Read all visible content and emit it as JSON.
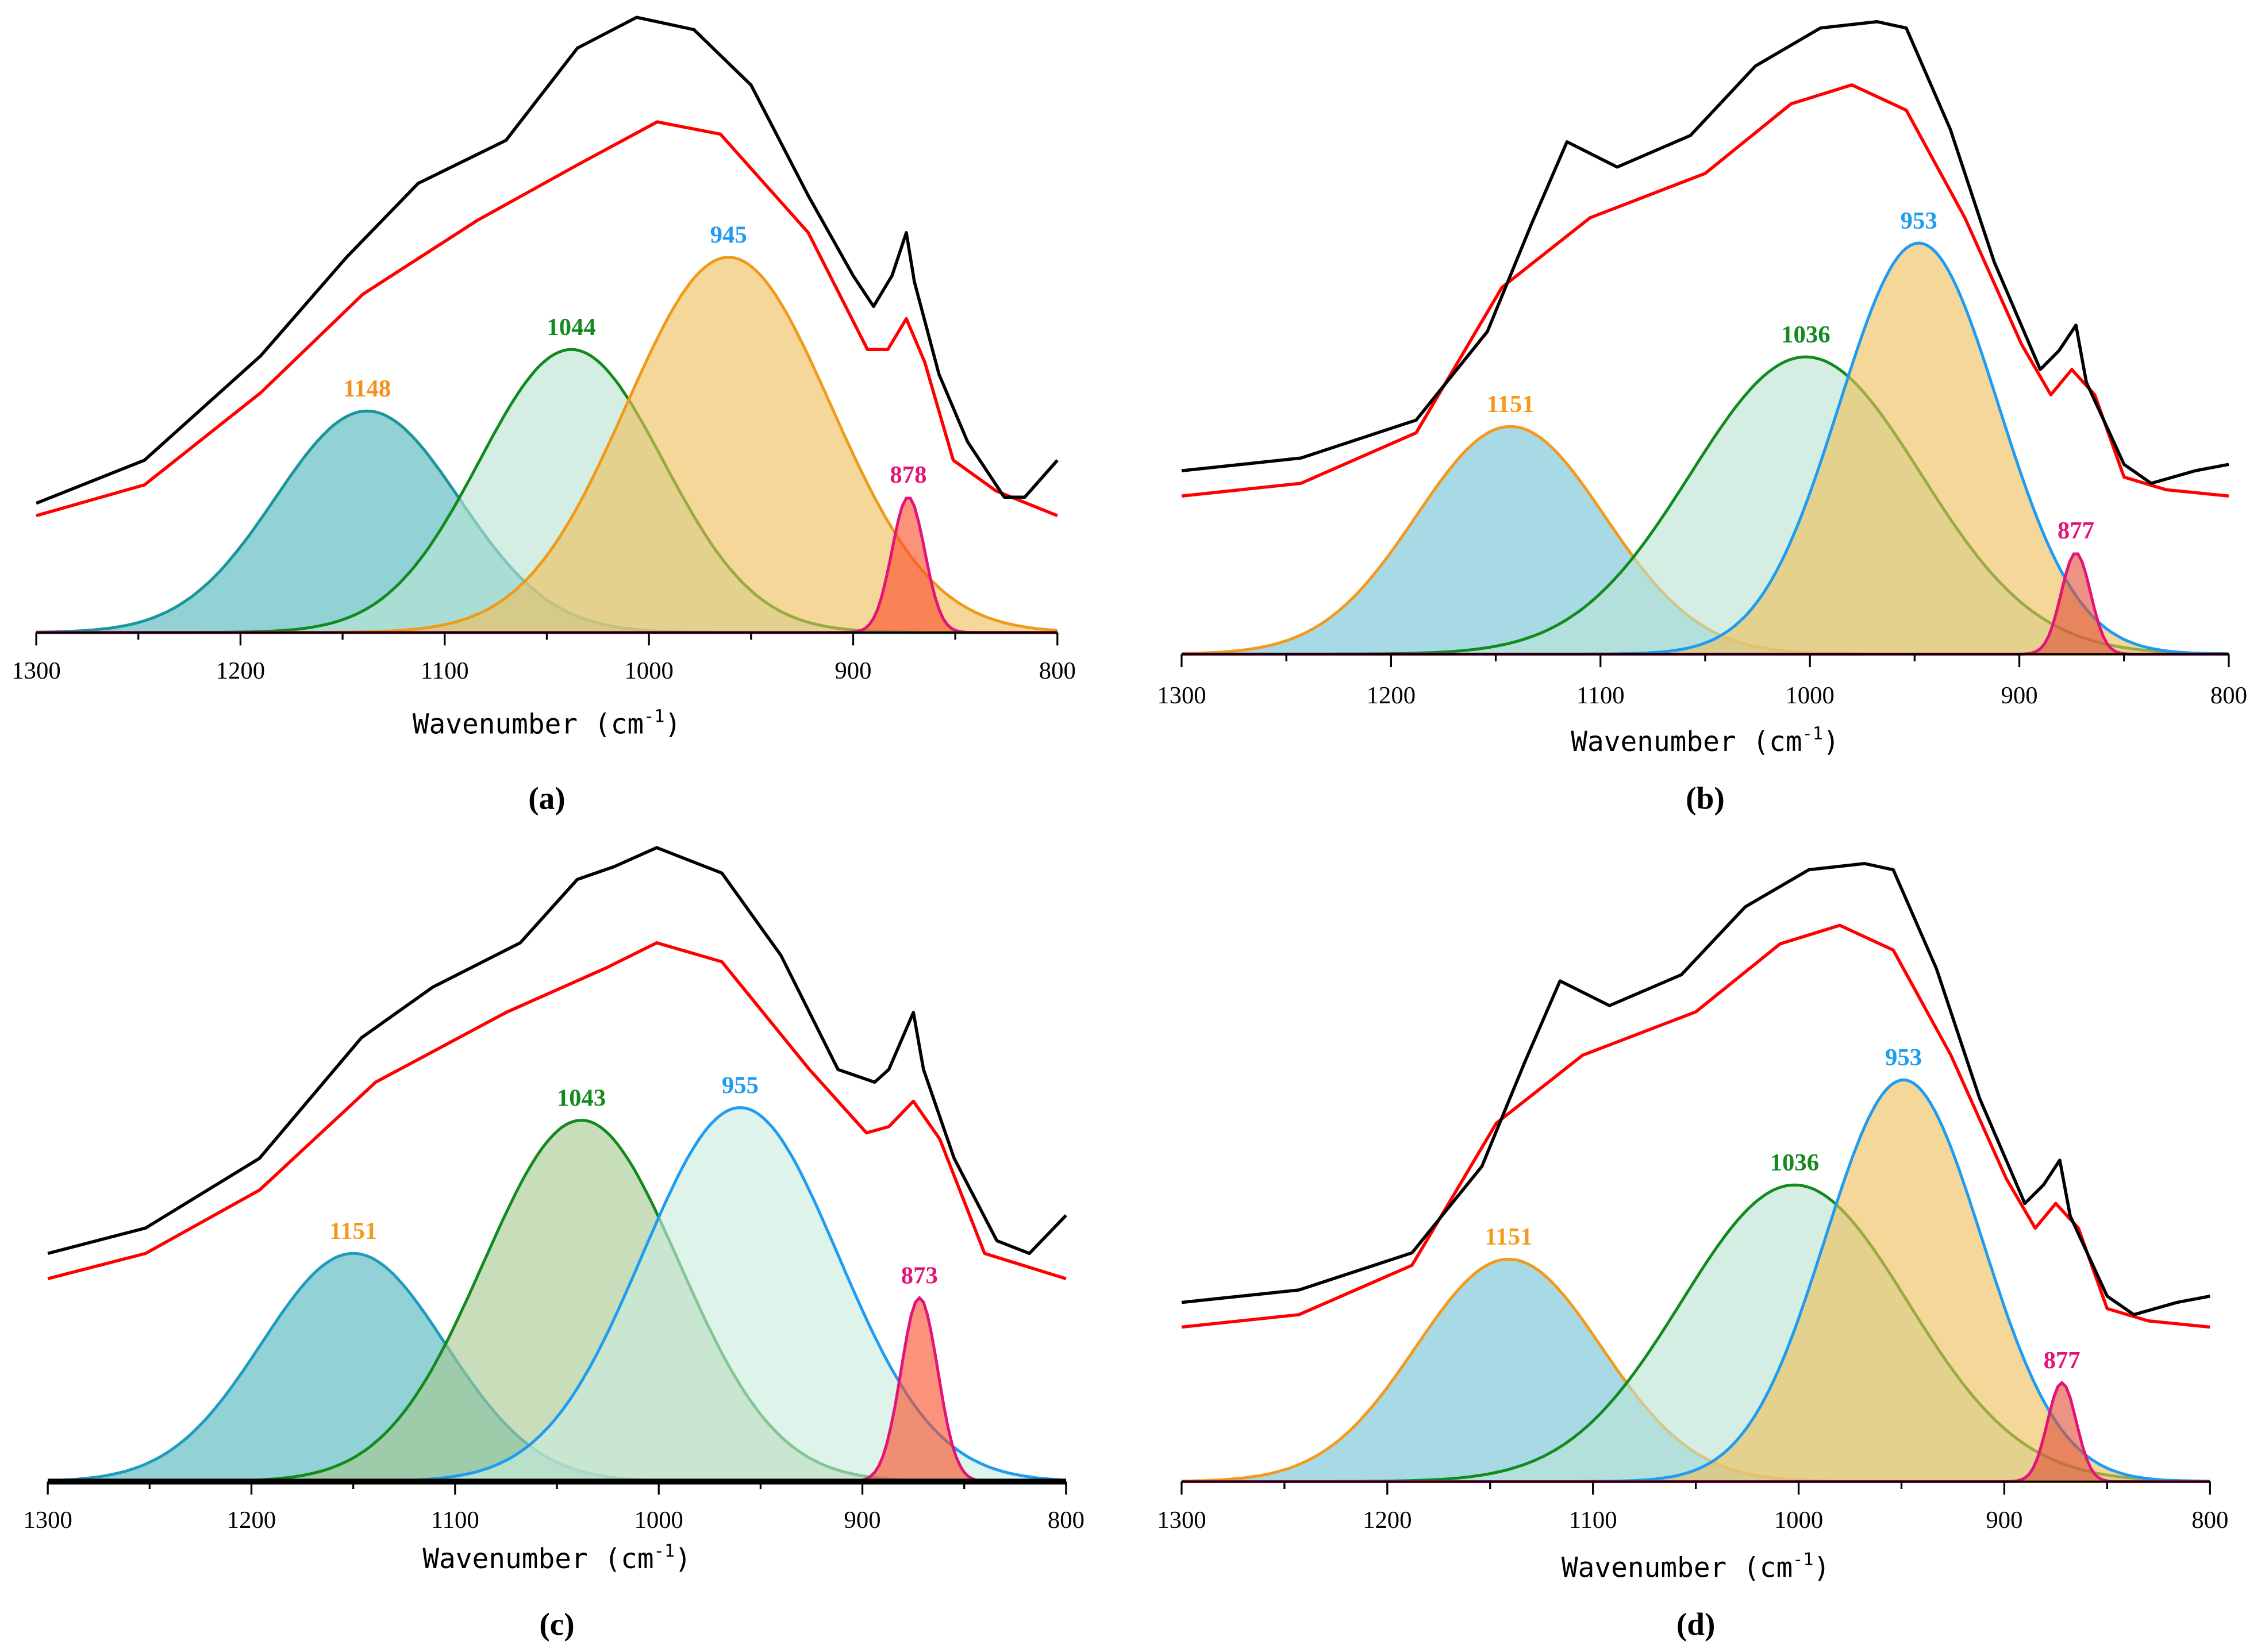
{
  "chart_data": [
    {
      "type": "area",
      "panel": "a",
      "caption": "(a)",
      "xlabel": "Wavenumber (cm",
      "xlabel_sup": "-1",
      "xlabel_end": ")",
      "xlim": [
        1300,
        800
      ],
      "xticks": [
        "1300",
        "1200",
        "1100",
        "1000",
        "900",
        "800"
      ],
      "ylabel": "",
      "thick_axis": false,
      "peaks": [
        {
          "label": "1148",
          "center": 1138,
          "height": 0.36,
          "sigma": 45,
          "stroke": "#1a959c",
          "fill": "#4fb5bd",
          "label_color": "#f5901e"
        },
        {
          "label": "1044",
          "center": 1038,
          "height": 0.46,
          "sigma": 45,
          "stroke": "#128a1e",
          "fill": "#b9e3d2",
          "label_color": "#128a1e"
        },
        {
          "label": "945",
          "center": 961,
          "height": 0.61,
          "sigma": 50,
          "stroke": "#f09a1a",
          "fill": "#efbf5a",
          "label_color": "#1f9af0"
        },
        {
          "label": "878",
          "center": 873,
          "height": 0.22,
          "sigma": 8,
          "stroke": "#e3137a",
          "fill": "#fb4f2c",
          "label_color": "#e3137a"
        }
      ],
      "measured": {
        "color": "#000000",
        "x": [
          1300,
          1247,
          1190,
          1148,
          1113,
          1070,
          1035,
          1006,
          978,
          950,
          922,
          900,
          890,
          881,
          874,
          870,
          858,
          844,
          826,
          816,
          800
        ],
        "y": [
          0.21,
          0.28,
          0.45,
          0.61,
          0.73,
          0.8,
          0.95,
          1.0,
          0.98,
          0.89,
          0.71,
          0.58,
          0.53,
          0.58,
          0.65,
          0.57,
          0.42,
          0.31,
          0.22,
          0.22,
          0.28
        ]
      },
      "fitted": {
        "color": "#ff0000",
        "x": [
          1300,
          1247,
          1190,
          1140,
          1084,
          1035,
          996,
          965,
          922,
          893,
          883,
          874,
          865,
          851,
          830,
          800
        ],
        "y": [
          0.19,
          0.24,
          0.39,
          0.55,
          0.67,
          0.76,
          0.83,
          0.81,
          0.65,
          0.46,
          0.46,
          0.51,
          0.44,
          0.28,
          0.23,
          0.19
        ]
      }
    },
    {
      "type": "area",
      "panel": "b",
      "caption": "(b)",
      "xlabel": "Wavenumber (cm",
      "xlabel_sup": "-1",
      "xlabel_end": ")",
      "xlim": [
        1300,
        800
      ],
      "xticks": [
        "1300",
        "1200",
        "1100",
        "1000",
        "900",
        "800"
      ],
      "ylabel": "",
      "thick_axis": false,
      "peaks": [
        {
          "label": "1151",
          "center": 1143,
          "height": 0.36,
          "sigma": 45,
          "stroke": "#f39a1c",
          "fill": "#72c3d6",
          "label_color": "#f39a1c"
        },
        {
          "label": "1036",
          "center": 1002,
          "height": 0.47,
          "sigma": 55,
          "stroke": "#128a1e",
          "fill": "#b9e3d2",
          "label_color": "#128a1e"
        },
        {
          "label": "953",
          "center": 948,
          "height": 0.65,
          "sigma": 38,
          "stroke": "#1e9cf2",
          "fill": "#efbf5a",
          "label_color": "#1e9cf2"
        },
        {
          "label": "877",
          "center": 873,
          "height": 0.16,
          "sigma": 7,
          "stroke": "#e3137a",
          "fill": "#e0503a",
          "label_color": "#e3137a"
        }
      ],
      "measured": {
        "color": "#000000",
        "x": [
          1300,
          1243,
          1188,
          1154,
          1133,
          1116,
          1092,
          1057,
          1026,
          995,
          968,
          954,
          933,
          912,
          890,
          881,
          873,
          868,
          850,
          837,
          816,
          800
        ],
        "y": [
          0.29,
          0.31,
          0.37,
          0.51,
          0.68,
          0.81,
          0.77,
          0.82,
          0.93,
          0.99,
          1.0,
          0.99,
          0.83,
          0.62,
          0.45,
          0.48,
          0.52,
          0.43,
          0.3,
          0.27,
          0.29,
          0.3
        ]
      },
      "fitted": {
        "color": "#ff0000",
        "x": [
          1300,
          1243,
          1188,
          1147,
          1105,
          1050,
          1009,
          980,
          954,
          926,
          899,
          885,
          875,
          864,
          850,
          830,
          800
        ],
        "y": [
          0.25,
          0.27,
          0.35,
          0.58,
          0.69,
          0.76,
          0.87,
          0.9,
          0.86,
          0.69,
          0.49,
          0.41,
          0.45,
          0.41,
          0.28,
          0.26,
          0.25
        ]
      }
    },
    {
      "type": "area",
      "panel": "c",
      "caption": "(c)",
      "xlabel": "Wavenumber (cm",
      "xlabel_sup": "-1",
      "xlabel_end": ")",
      "xlim": [
        1300,
        800
      ],
      "xticks": [
        "1300",
        "1200",
        "1100",
        "1000",
        "900",
        "800"
      ],
      "ylabel": "",
      "thick_axis": true,
      "peaks": [
        {
          "label": "1151",
          "center": 1150,
          "height": 0.36,
          "sigma": 45,
          "stroke": "#1f9bc0",
          "fill": "#4fb5bd",
          "label_color": "#f39a1c"
        },
        {
          "label": "1043",
          "center": 1038,
          "height": 0.57,
          "sigma": 48,
          "stroke": "#128a1e",
          "fill": "#a6c88f",
          "label_color": "#128a1e"
        },
        {
          "label": "955",
          "center": 960,
          "height": 0.59,
          "sigma": 48,
          "stroke": "#1e9cf2",
          "fill": "#c9ebdd",
          "label_color": "#1e9cf2"
        },
        {
          "label": "873",
          "center": 872,
          "height": 0.29,
          "sigma": 9,
          "stroke": "#e3137a",
          "fill": "#fb4f2c",
          "label_color": "#e3137a"
        }
      ],
      "measured": {
        "color": "#000000",
        "x": [
          1300,
          1252,
          1196,
          1146,
          1111,
          1068,
          1040,
          1022,
          1001,
          969,
          940,
          912,
          894,
          887,
          875,
          870,
          855,
          834,
          818,
          800
        ],
        "y": [
          0.36,
          0.4,
          0.51,
          0.7,
          0.78,
          0.85,
          0.95,
          0.97,
          1.0,
          0.96,
          0.83,
          0.65,
          0.63,
          0.65,
          0.74,
          0.65,
          0.51,
          0.38,
          0.36,
          0.42
        ]
      },
      "fitted": {
        "color": "#ff0000",
        "x": [
          1300,
          1252,
          1196,
          1139,
          1075,
          1026,
          1001,
          969,
          926,
          898,
          887,
          875,
          862,
          840,
          800
        ],
        "y": [
          0.32,
          0.36,
          0.46,
          0.63,
          0.74,
          0.81,
          0.85,
          0.82,
          0.65,
          0.55,
          0.56,
          0.6,
          0.54,
          0.36,
          0.32
        ]
      }
    },
    {
      "type": "area",
      "panel": "d",
      "caption": "(d)",
      "xlabel": "Wavenumber (cm",
      "xlabel_sup": "-1",
      "xlabel_end": ")",
      "xlim": [
        1300,
        800
      ],
      "xticks": [
        "1300",
        "1200",
        "1100",
        "1000",
        "900",
        "800"
      ],
      "ylabel": "",
      "thick_axis": false,
      "peaks": [
        {
          "label": "1151",
          "center": 1141,
          "height": 0.36,
          "sigma": 45,
          "stroke": "#f39a1c",
          "fill": "#72c3d6",
          "label_color": "#f39a1c"
        },
        {
          "label": "1036",
          "center": 1002,
          "height": 0.48,
          "sigma": 55,
          "stroke": "#128a1e",
          "fill": "#b9e3d2",
          "label_color": "#128a1e"
        },
        {
          "label": "953",
          "center": 949,
          "height": 0.65,
          "sigma": 38,
          "stroke": "#1e9cf2",
          "fill": "#efbf5a",
          "label_color": "#1e9cf2"
        },
        {
          "label": "877",
          "center": 872,
          "height": 0.16,
          "sigma": 7,
          "stroke": "#e3137a",
          "fill": "#e0503a",
          "label_color": "#e3137a"
        }
      ],
      "measured": {
        "color": "#000000",
        "x": [
          1300,
          1243,
          1188,
          1154,
          1133,
          1116,
          1092,
          1057,
          1026,
          995,
          968,
          954,
          933,
          912,
          890,
          881,
          873,
          868,
          850,
          837,
          816,
          800
        ],
        "y": [
          0.29,
          0.31,
          0.37,
          0.51,
          0.68,
          0.81,
          0.77,
          0.82,
          0.93,
          0.99,
          1.0,
          0.99,
          0.83,
          0.62,
          0.45,
          0.48,
          0.52,
          0.43,
          0.3,
          0.27,
          0.29,
          0.3
        ]
      },
      "fitted": {
        "color": "#ff0000",
        "x": [
          1300,
          1243,
          1188,
          1147,
          1105,
          1050,
          1009,
          980,
          954,
          926,
          899,
          885,
          875,
          864,
          850,
          830,
          800
        ],
        "y": [
          0.25,
          0.27,
          0.35,
          0.58,
          0.69,
          0.76,
          0.87,
          0.9,
          0.86,
          0.69,
          0.49,
          0.41,
          0.45,
          0.41,
          0.28,
          0.26,
          0.25
        ]
      }
    }
  ]
}
